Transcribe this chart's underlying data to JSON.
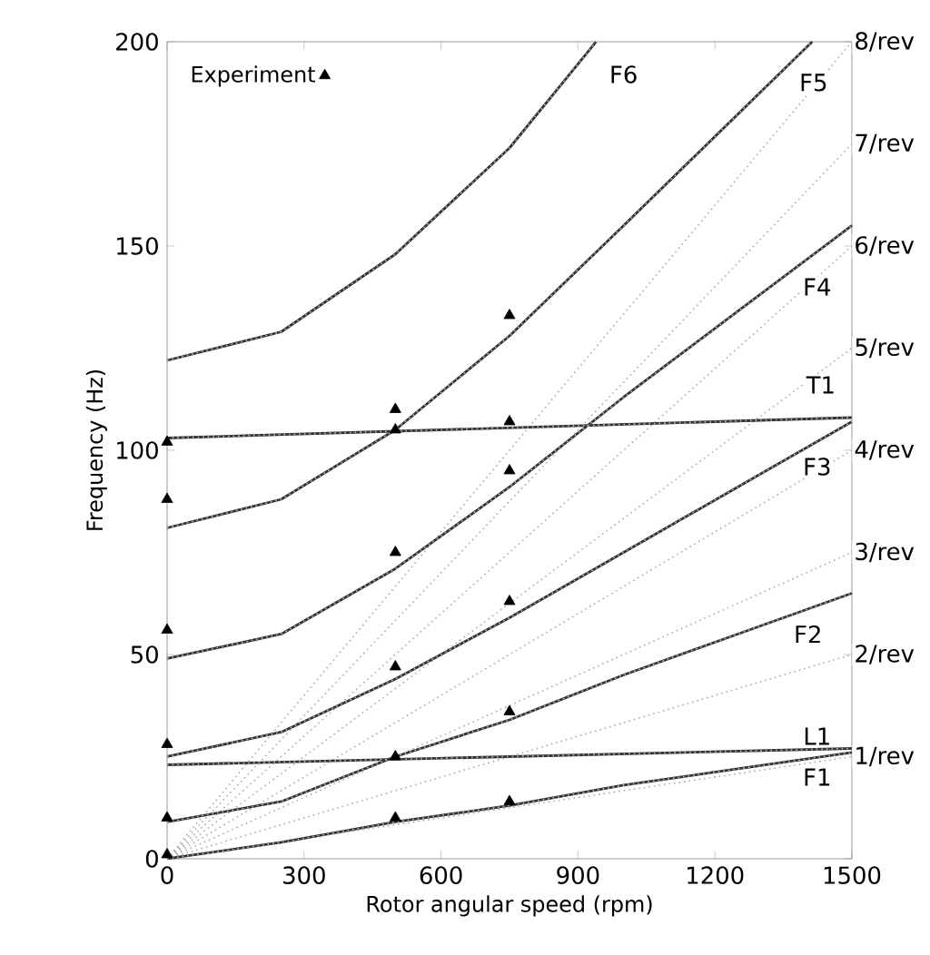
{
  "chart_data": {
    "type": "line",
    "xlabel": "Rotor angular speed (rpm)",
    "ylabel": "Frequency (Hz)",
    "xlim": [
      0,
      1500
    ],
    "ylim": [
      0,
      200
    ],
    "xticks": [
      0,
      300,
      600,
      900,
      1200,
      1500
    ],
    "yticks": [
      0,
      50,
      100,
      150,
      200
    ],
    "grid": false,
    "legend": "top left",
    "series": [
      {
        "type": "scatter",
        "name": "Experiment",
        "color": "#000000",
        "marker": "triangle",
        "x": [
          0,
          0,
          0,
          0,
          0,
          0,
          500,
          500,
          500,
          500,
          500,
          500,
          750,
          750,
          750,
          750,
          750,
          750
        ],
        "values": [
          102,
          88,
          56,
          28,
          10,
          1,
          110,
          105,
          75,
          47,
          25,
          10,
          133,
          107,
          95,
          63,
          36,
          14
        ]
      },
      {
        "color": "#aaaaaa",
        "line_style": "dotted",
        "x": [
          0,
          1500
        ],
        "values": [
          0,
          25
        ]
      },
      {
        "color": "#aaaaaa",
        "line_style": "dotted",
        "x": [
          0,
          1500
        ],
        "values": [
          0,
          50
        ]
      },
      {
        "color": "#aaaaaa",
        "line_style": "dotted",
        "x": [
          0,
          1500
        ],
        "values": [
          0,
          75
        ]
      },
      {
        "color": "#aaaaaa",
        "line_style": "dotted",
        "x": [
          0,
          1500
        ],
        "values": [
          0,
          100
        ]
      },
      {
        "color": "#aaaaaa",
        "line_style": "dotted",
        "x": [
          0,
          1500
        ],
        "values": [
          0,
          125
        ]
      },
      {
        "color": "#aaaaaa",
        "line_style": "dotted",
        "x": [
          0,
          1500
        ],
        "values": [
          0,
          150
        ]
      },
      {
        "color": "#aaaaaa",
        "line_style": "dotted",
        "x": [
          0,
          1500
        ],
        "values": [
          0,
          175
        ]
      },
      {
        "color": "#aaaaaa",
        "line_style": "dotted",
        "x": [
          0,
          1500
        ],
        "values": [
          0,
          200
        ]
      },
      {
        "color": "#333333",
        "line_style": "solid",
        "x": [
          0,
          250,
          500,
          750,
          940
        ],
        "values": [
          122,
          129,
          148,
          174,
          200
        ]
      },
      {
        "color": "#333333",
        "line_style": "solid",
        "x": [
          0,
          250,
          500,
          750,
          1000,
          1413
        ],
        "values": [
          81,
          88,
          105,
          128,
          155,
          200
        ]
      },
      {
        "color": "#333333",
        "line_style": "solid",
        "x": [
          0,
          250,
          500,
          750,
          1000,
          1250,
          1500
        ],
        "values": [
          49,
          55,
          71,
          91,
          113,
          134,
          155
        ]
      },
      {
        "color": "#333333",
        "line_style": "solid",
        "x": [
          0,
          1500
        ],
        "values": [
          103,
          108
        ]
      },
      {
        "color": "#333333",
        "line_style": "solid",
        "x": [
          0,
          250,
          500,
          750,
          1000,
          1250,
          1500
        ],
        "values": [
          25,
          31,
          44,
          59,
          75,
          91,
          107
        ]
      },
      {
        "color": "#333333",
        "line_style": "solid",
        "x": [
          0,
          250,
          500,
          750,
          1000,
          1250,
          1500
        ],
        "values": [
          9,
          14,
          25,
          34,
          45,
          55,
          65
        ]
      },
      {
        "color": "#333333",
        "line_style": "solid",
        "x": [
          0,
          1500
        ],
        "values": [
          23,
          27
        ]
      },
      {
        "color": "#333333",
        "line_style": "solid",
        "x": [
          0,
          250,
          500,
          750,
          1000,
          1250,
          1500
        ],
        "values": [
          0,
          4,
          9,
          13,
          18,
          22,
          26
        ]
      },
      {
        "color": "#bbbbbb",
        "line_style": "dotted",
        "x": [
          0,
          250,
          500,
          750,
          940
        ],
        "values": [
          122,
          129,
          148,
          174,
          200
        ]
      },
      {
        "color": "#bbbbbb",
        "line_style": "dotted",
        "x": [
          0,
          250,
          500,
          750,
          1000,
          1413
        ],
        "values": [
          81,
          88,
          105,
          128,
          155,
          200
        ]
      },
      {
        "color": "#bbbbbb",
        "line_style": "dotted",
        "x": [
          0,
          250,
          500,
          750,
          1000,
          1250,
          1500
        ],
        "values": [
          49,
          55,
          71,
          91,
          113,
          134,
          155
        ]
      },
      {
        "color": "#bbbbbb",
        "line_style": "dotted",
        "x": [
          0,
          1500
        ],
        "values": [
          103,
          108
        ]
      },
      {
        "color": "#bbbbbb",
        "line_style": "dotted",
        "x": [
          0,
          250,
          500,
          750,
          1000,
          1250,
          1500
        ],
        "values": [
          25,
          31,
          44,
          59,
          75,
          91,
          107
        ]
      },
      {
        "color": "#bbbbbb",
        "line_style": "dotted",
        "x": [
          0,
          250,
          500,
          750,
          1000,
          1250,
          1500
        ],
        "values": [
          9,
          14,
          25,
          34,
          45,
          55,
          65
        ]
      },
      {
        "color": "#bbbbbb",
        "line_style": "dotted",
        "x": [
          0,
          1500
        ],
        "values": [
          23,
          27
        ]
      },
      {
        "color": "#bbbbbb",
        "line_style": "dotted",
        "x": [
          0,
          250,
          500,
          750,
          1000,
          1250,
          1500
        ],
        "values": [
          0,
          4,
          9,
          13,
          18,
          22,
          26
        ]
      }
    ],
    "annotations": [
      {
        "text": "F6",
        "x": 1000,
        "y": 192
      },
      {
        "text": "F5",
        "x": 1416,
        "y": 190
      },
      {
        "text": "F4",
        "x": 1424,
        "y": 140
      },
      {
        "text": "T1",
        "x": 1432,
        "y": 116
      },
      {
        "text": "F3",
        "x": 1424,
        "y": 96
      },
      {
        "text": "F2",
        "x": 1404,
        "y": 55
      },
      {
        "text": "L1",
        "x": 1424,
        "y": 30
      },
      {
        "text": "F1",
        "x": 1424,
        "y": 20
      },
      {
        "text": "1/rev",
        "x": 1500,
        "y": 25
      },
      {
        "text": "2/rev",
        "x": 1500,
        "y": 50
      },
      {
        "text": "3/rev",
        "x": 1500,
        "y": 75
      },
      {
        "text": "4/rev",
        "x": 1500,
        "y": 100
      },
      {
        "text": "5/rev",
        "x": 1500,
        "y": 125
      },
      {
        "text": "6/rev",
        "x": 1500,
        "y": 150
      },
      {
        "text": "7/rev",
        "x": 1500,
        "y": 175
      },
      {
        "text": "8/rev",
        "x": 1500,
        "y": 200
      }
    ]
  }
}
